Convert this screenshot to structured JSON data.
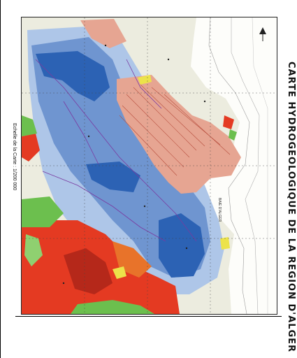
{
  "map": {
    "title": "CARTE HYDROGEOLOGIQUE DE LA REGION D'ALGER",
    "scale_text": "Echelle de la Carte : 1/200 000",
    "coastal_label": "BAIE D'ALGER",
    "colors": {
      "deep_blue": "#2c62b4",
      "mid_blue": "#6f95d0",
      "light_blue": "#aec6e8",
      "pink": "#e6a592",
      "red": "#e43a22",
      "orange": "#e8732a",
      "green": "#6cbf4e",
      "yellow": "#ece34a",
      "map_base": "#ececdf"
    },
    "icons": [
      "north-arrow-icon"
    ]
  }
}
